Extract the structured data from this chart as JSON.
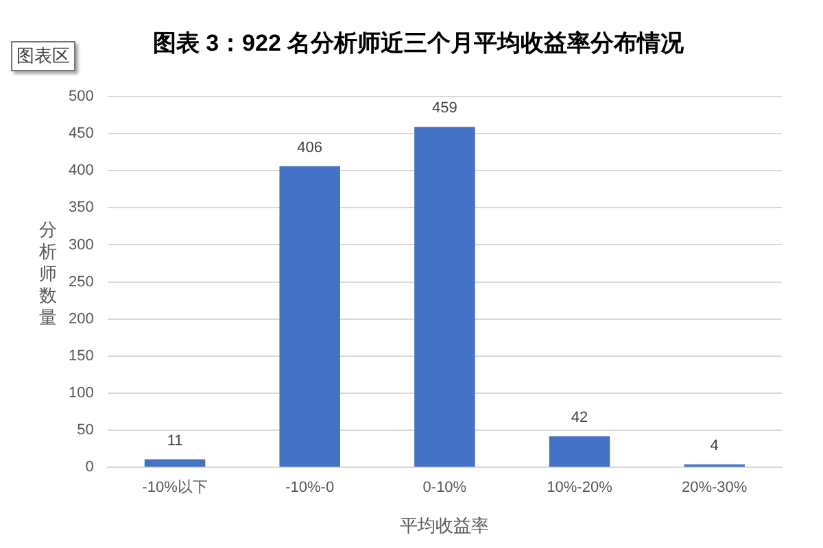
{
  "chart_data": {
    "type": "bar",
    "title": "图表 3：922 名分析师近三个月平均收益率分布情况",
    "xlabel": "平均收益率",
    "ylabel": "分析师数量",
    "annotations": [
      "图表区"
    ],
    "categories": [
      "-10%以下",
      "-10%-0",
      "0-10%",
      "10%-20%",
      "20%-30%"
    ],
    "values": [
      11,
      406,
      459,
      42,
      4
    ],
    "color": "#4472c4",
    "ylim": [
      0,
      500
    ],
    "yticks": [
      0,
      50,
      100,
      150,
      200,
      250,
      300,
      350,
      400,
      450,
      500
    ],
    "grid": "y",
    "data_labels": true,
    "legend": false
  }
}
